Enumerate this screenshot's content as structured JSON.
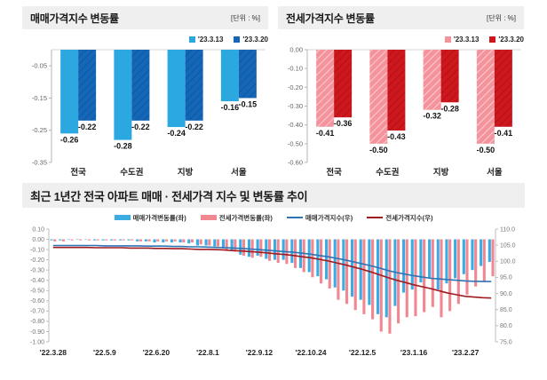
{
  "accent_colors": {
    "light_blue": "#2BA8E0",
    "dark_blue": "#1467B8",
    "light_pink": "#F4939B",
    "dark_red": "#CE161D",
    "blue_line": "#2E74B5",
    "red_line": "#9E1B20",
    "header_bg": "#EFEFEF"
  },
  "chart_data": [
    {
      "type": "bar",
      "title": "매매가격지수 변동률",
      "unit": "[단위 : %]",
      "categories": [
        "전국",
        "수도권",
        "지방",
        "서울"
      ],
      "series": [
        {
          "name": "'23.3.13",
          "color": "#2BA8E0",
          "hatch": "none",
          "values": [
            -0.26,
            -0.28,
            -0.24,
            -0.16
          ]
        },
        {
          "name": "'23.3.20",
          "color": "#1467B8",
          "hatch": "dark",
          "values": [
            -0.22,
            -0.22,
            -0.22,
            -0.15
          ]
        }
      ],
      "ylim": [
        0,
        -0.35
      ],
      "yticks": [
        -0.05,
        -0.15,
        -0.25,
        -0.35
      ],
      "grid": false,
      "legend_position": "top-right"
    },
    {
      "type": "bar",
      "title": "전세가격지수 변동률",
      "unit": "[단위 : %]",
      "categories": [
        "전국",
        "수도권",
        "지방",
        "서울"
      ],
      "series": [
        {
          "name": "'23.3.13",
          "color": "#F4939B",
          "hatch": "light",
          "values": [
            -0.41,
            -0.5,
            -0.32,
            -0.5
          ]
        },
        {
          "name": "'23.3.20",
          "color": "#CE161D",
          "hatch": "dark",
          "values": [
            -0.36,
            -0.43,
            -0.28,
            -0.41
          ]
        }
      ],
      "ylim": [
        0,
        -0.6
      ],
      "yticks": [
        0.0,
        -0.1,
        -0.2,
        -0.3,
        -0.4,
        -0.5,
        -0.6
      ],
      "grid": false,
      "legend_position": "top-right"
    },
    {
      "type": "combo",
      "title": "최근 1년간 전국 아파트 매매 · 전세가격 지수 및 변동률 추이",
      "x": [
        "'22.3.28",
        "'22.4.4",
        "'22.4.11",
        "'22.4.18",
        "'22.4.25",
        "'22.5.2",
        "'22.5.9",
        "'22.5.16",
        "'22.5.23",
        "'22.5.30",
        "'22.6.6",
        "'22.6.13",
        "'22.6.20",
        "'22.6.27",
        "'22.7.4",
        "'22.7.11",
        "'22.7.18",
        "'22.7.25",
        "'22.8.1",
        "'22.8.8",
        "'22.8.15",
        "'22.8.22",
        "'22.8.29",
        "'22.9.5",
        "'22.9.12",
        "'22.9.19",
        "'22.9.26",
        "'22.10.3",
        "'22.10.10",
        "'22.10.17",
        "'22.10.24",
        "'22.10.31",
        "'22.11.7",
        "'22.11.14",
        "'22.11.21",
        "'22.11.28",
        "'22.12.5",
        "'22.12.12",
        "'22.12.19",
        "'22.12.26",
        "'23.1.2",
        "'23.1.9",
        "'23.1.16",
        "'23.1.23",
        "'23.1.30",
        "'23.2.6",
        "'23.2.13",
        "'23.2.20",
        "'23.2.27",
        "'23.3.6",
        "'23.3.13",
        "'23.3.20"
      ],
      "x_label_every": 6,
      "x_tick_labels": [
        "'22.3.28",
        "'22.5.9",
        "'22.6.20",
        "'22.8.1",
        "'22.9.12",
        "'22.10.24",
        "'22.12.5",
        "'23.1.16",
        "'23.2.27"
      ],
      "left_axis": {
        "max": 0.1,
        "min": -1.0,
        "step": 0.1
      },
      "right_axis": {
        "max": 110.0,
        "min": 75.0,
        "step": 5.0
      },
      "bar_series": [
        {
          "name": "매매가격변동률(좌)",
          "axis": "left",
          "color": "#3AACE3",
          "values": [
            -0.01,
            -0.01,
            0.0,
            0.0,
            0.0,
            -0.01,
            -0.01,
            -0.01,
            -0.01,
            -0.01,
            -0.02,
            -0.02,
            -0.03,
            -0.03,
            -0.03,
            -0.03,
            -0.04,
            -0.06,
            -0.06,
            -0.07,
            -0.09,
            -0.11,
            -0.15,
            -0.17,
            -0.16,
            -0.19,
            -0.2,
            -0.2,
            -0.23,
            -0.28,
            -0.32,
            -0.36,
            -0.39,
            -0.47,
            -0.5,
            -0.56,
            -0.59,
            -0.64,
            -0.73,
            -0.76,
            -0.65,
            -0.52,
            -0.49,
            -0.42,
            -0.38,
            -0.49,
            -0.43,
            -0.38,
            -0.34,
            -0.3,
            -0.26,
            -0.22
          ]
        },
        {
          "name": "전세가격변동률(좌)",
          "axis": "left",
          "color": "#F08791",
          "values": [
            -0.02,
            -0.02,
            -0.01,
            -0.01,
            -0.01,
            -0.01,
            -0.01,
            -0.01,
            -0.01,
            -0.01,
            -0.02,
            -0.02,
            -0.02,
            -0.02,
            -0.02,
            -0.03,
            -0.03,
            -0.05,
            -0.06,
            -0.07,
            -0.1,
            -0.12,
            -0.16,
            -0.18,
            -0.17,
            -0.21,
            -0.23,
            -0.24,
            -0.28,
            -0.32,
            -0.37,
            -0.43,
            -0.48,
            -0.59,
            -0.63,
            -0.69,
            -0.73,
            -0.78,
            -0.9,
            -0.92,
            -0.82,
            -0.76,
            -0.75,
            -0.71,
            -0.66,
            -0.76,
            -0.7,
            -0.63,
            -0.54,
            -0.46,
            -0.41,
            -0.36
          ]
        }
      ],
      "line_series": [
        {
          "name": "매매가격지수(우)",
          "axis": "right",
          "color": "#2E74B5",
          "values": [
            104.9,
            104.9,
            104.9,
            104.9,
            104.9,
            104.9,
            104.8,
            104.8,
            104.8,
            104.8,
            104.8,
            104.7,
            104.7,
            104.7,
            104.6,
            104.6,
            104.5,
            104.5,
            104.4,
            104.3,
            104.2,
            104.1,
            104.0,
            103.8,
            103.6,
            103.4,
            103.2,
            103.0,
            102.8,
            102.5,
            102.2,
            101.8,
            101.4,
            100.9,
            100.4,
            99.8,
            99.2,
            98.6,
            97.9,
            97.1,
            96.5,
            96.0,
            95.5,
            95.1,
            94.7,
            94.5,
            94.3,
            94.1,
            93.9,
            93.8,
            93.7,
            93.7
          ]
        },
        {
          "name": "전세가격지수(우)",
          "axis": "right",
          "color": "#9E1B20",
          "values": [
            104.3,
            104.3,
            104.3,
            104.3,
            104.3,
            104.2,
            104.2,
            104.2,
            104.2,
            104.1,
            104.1,
            104.1,
            104.0,
            104.0,
            103.9,
            103.9,
            103.8,
            103.7,
            103.7,
            103.6,
            103.5,
            103.3,
            103.2,
            103.0,
            102.8,
            102.6,
            102.3,
            102.1,
            101.8,
            101.4,
            101.1,
            100.6,
            100.1,
            99.5,
            98.9,
            98.2,
            97.5,
            96.7,
            95.8,
            94.9,
            94.1,
            93.4,
            92.7,
            92.1,
            91.5,
            90.8,
            90.1,
            89.6,
            89.1,
            88.9,
            88.7,
            88.6
          ]
        }
      ],
      "grid": false,
      "legend_position": "top-center"
    }
  ]
}
